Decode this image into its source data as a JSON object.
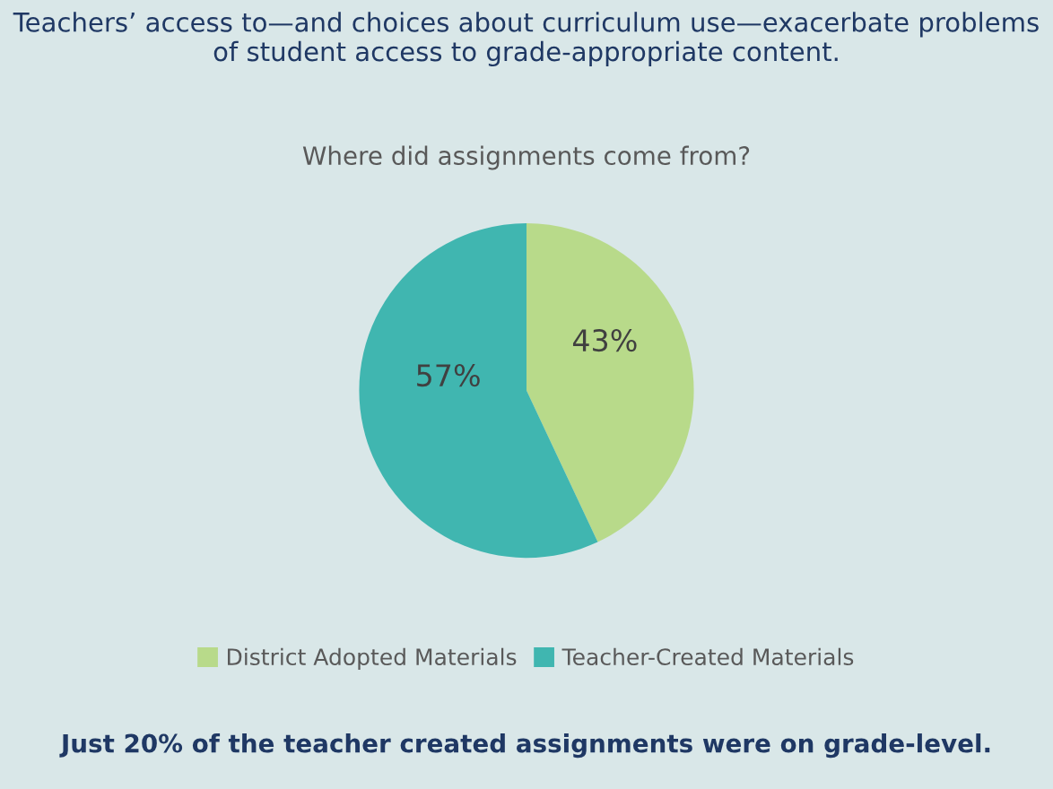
{
  "chart_data": {
    "type": "pie",
    "title": "Teachers’ access to—and choices about curriculum use—exacerbate problems of student access to grade-appropriate content.",
    "subtitle": "Where did assignments come from?",
    "categories": [
      "District Adopted Materials",
      "Teacher-Created Materials"
    ],
    "values": [
      43,
      57
    ],
    "value_labels": [
      "43%",
      "57%"
    ],
    "colors": [
      "#b8da8a",
      "#40b6b0"
    ],
    "legend": "bottom",
    "annotations": [
      "Just 20% of the teacher created assignments were on grade-level."
    ]
  }
}
